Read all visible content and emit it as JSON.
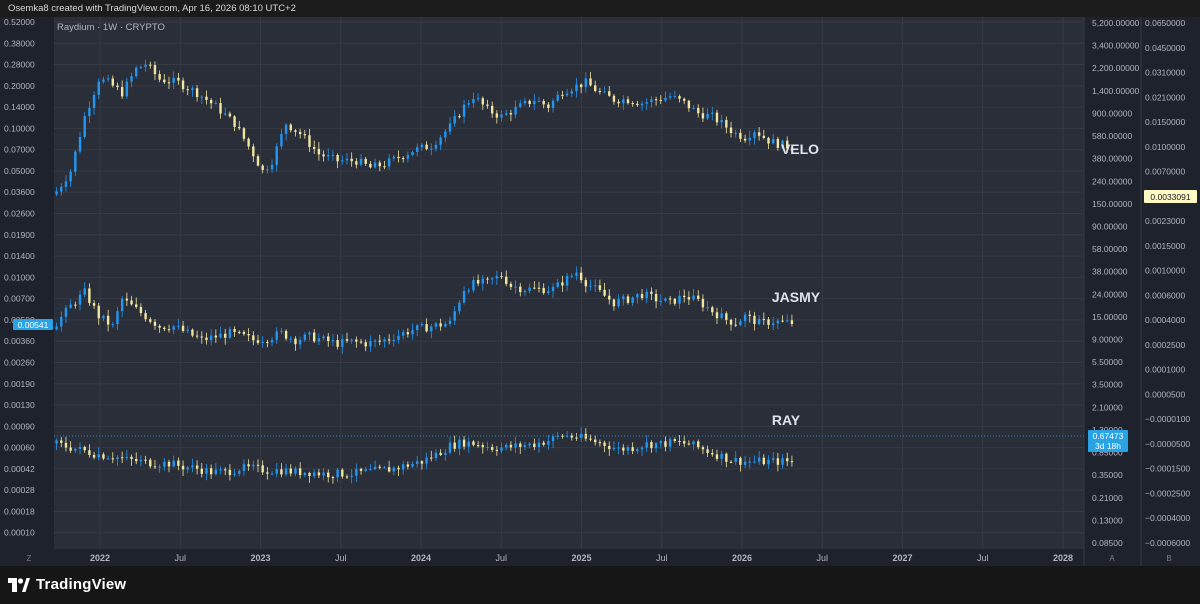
{
  "header": {
    "attribution": "Osemka8 created with TradingView.com, Apr 16, 2026 08:10 UTC+2"
  },
  "legend": {
    "title": "Raydium · 1W · CRYPTO"
  },
  "footer": {
    "brand": "TradingView",
    "corner_left": "Z",
    "corner_right_a": "A",
    "corner_right_b": "B"
  },
  "colors": {
    "background": "#2a2e38",
    "frame": "#161616",
    "grid": "#363a45",
    "up": "#2196f3",
    "down": "#f0e6a0",
    "price_line": "#29a3e6",
    "label_bg": "#29a3e6",
    "velo_label_bg": "#fff9c4",
    "text": "#b2b5be"
  },
  "chart_data": {
    "type": "candlestick",
    "timeframe": "1W",
    "x_ticks": [
      "2022",
      "Jul",
      "2023",
      "Jul",
      "2024",
      "Jul",
      "2025",
      "Jul",
      "2026",
      "Jul",
      "2027",
      "Jul",
      "2028"
    ],
    "left_axis": {
      "ticks": [
        "0.52000",
        "0.38000",
        "0.28000",
        "0.20000",
        "0.14000",
        "0.10000",
        "0.07000",
        "0.05000",
        "0.03600",
        "0.02600",
        "0.01900",
        "0.01400",
        "0.01000",
        "0.00700",
        "0.00500",
        "0.00360",
        "0.00260",
        "0.00190",
        "0.00130",
        "0.00090",
        "0.00060",
        "0.00042",
        "0.00028",
        "0.00018",
        "0.00010"
      ],
      "current_value": "0.00541"
    },
    "middle_axis": {
      "ticks": [
        "5,200.00000",
        "3,400.00000",
        "2,200.00000",
        "1,400.00000",
        "900.00000",
        "580.00000",
        "380.00000",
        "240.00000",
        "150.00000",
        "90.00000",
        "58.00000",
        "38.00000",
        "24.00000",
        "15.00000",
        "9.00000",
        "5.50000",
        "3.50000",
        "2.10000",
        "1.30000",
        "0.85000",
        "0.35000",
        "0.21000",
        "0.13000",
        "0.08500"
      ],
      "current_value": "0.67473",
      "countdown": "3d 18h"
    },
    "right_axis": {
      "ticks": [
        "0.0650000",
        "0.0450000",
        "0.0310000",
        "0.0210000",
        "0.0150000",
        "0.0100000",
        "0.0070000",
        "0.0050000",
        "0.0023000",
        "0.0015000",
        "0.0010000",
        "0.0006000",
        "0.0004000",
        "0.0002500",
        "0.0001000",
        "0.0000500",
        "−0.0000100",
        "−0.0000500",
        "−0.0001500",
        "−0.0002500",
        "−0.0004000",
        "−0.0006000"
      ],
      "current_value": "0.0033091"
    },
    "series": [
      {
        "name": "VELO",
        "anchors": [
          [
            0,
            0.18
          ],
          [
            3,
            0.3
          ],
          [
            6,
            0.62
          ],
          [
            9,
            0.84
          ],
          [
            11,
            0.82
          ],
          [
            14,
            0.76
          ],
          [
            17,
            0.9
          ],
          [
            19,
            0.93
          ],
          [
            22,
            0.84
          ],
          [
            26,
            0.82
          ],
          [
            30,
            0.76
          ],
          [
            34,
            0.68
          ],
          [
            38,
            0.58
          ],
          [
            42,
            0.4
          ],
          [
            44,
            0.3
          ],
          [
            46,
            0.36
          ],
          [
            49,
            0.58
          ],
          [
            52,
            0.52
          ],
          [
            56,
            0.4
          ],
          [
            60,
            0.36
          ],
          [
            64,
            0.36
          ],
          [
            67,
            0.32
          ],
          [
            70,
            0.34
          ],
          [
            73,
            0.38
          ],
          [
            76,
            0.42
          ],
          [
            80,
            0.45
          ],
          [
            84,
            0.56
          ],
          [
            87,
            0.68
          ],
          [
            89,
            0.74
          ],
          [
            92,
            0.66
          ],
          [
            95,
            0.62
          ],
          [
            99,
            0.68
          ],
          [
            102,
            0.72
          ],
          [
            105,
            0.68
          ],
          [
            108,
            0.77
          ],
          [
            111,
            0.8
          ],
          [
            113,
            0.82
          ],
          [
            116,
            0.76
          ],
          [
            119,
            0.72
          ],
          [
            122,
            0.72
          ],
          [
            125,
            0.7
          ],
          [
            128,
            0.72
          ],
          [
            131,
            0.74
          ],
          [
            134,
            0.7
          ],
          [
            137,
            0.64
          ],
          [
            140,
            0.62
          ],
          [
            143,
            0.56
          ],
          [
            145,
            0.52
          ],
          [
            147,
            0.5
          ],
          [
            149,
            0.54
          ],
          [
            152,
            0.48
          ],
          [
            154,
            0.46
          ],
          [
            157,
            0.44
          ]
        ]
      },
      {
        "name": "JASMY",
        "anchors": [
          [
            0,
            0.2
          ],
          [
            3,
            0.3
          ],
          [
            6,
            0.38
          ],
          [
            9,
            0.24
          ],
          [
            12,
            0.18
          ],
          [
            14,
            0.34
          ],
          [
            17,
            0.28
          ],
          [
            20,
            0.22
          ],
          [
            22,
            0.18
          ],
          [
            25,
            0.18
          ],
          [
            28,
            0.14
          ],
          [
            31,
            0.1
          ],
          [
            34,
            0.12
          ],
          [
            37,
            0.14
          ],
          [
            40,
            0.12
          ],
          [
            42,
            0.1
          ],
          [
            45,
            0.11
          ],
          [
            48,
            0.14
          ],
          [
            51,
            0.1
          ],
          [
            54,
            0.12
          ],
          [
            57,
            0.1
          ],
          [
            60,
            0.08
          ],
          [
            63,
            0.09
          ],
          [
            66,
            0.08
          ],
          [
            69,
            0.09
          ],
          [
            72,
            0.12
          ],
          [
            76,
            0.16
          ],
          [
            80,
            0.18
          ],
          [
            84,
            0.2
          ],
          [
            87,
            0.4
          ],
          [
            89,
            0.43
          ],
          [
            92,
            0.44
          ],
          [
            95,
            0.48
          ],
          [
            97,
            0.42
          ],
          [
            100,
            0.4
          ],
          [
            103,
            0.4
          ],
          [
            106,
            0.4
          ],
          [
            109,
            0.46
          ],
          [
            111,
            0.5
          ],
          [
            113,
            0.44
          ],
          [
            116,
            0.38
          ],
          [
            119,
            0.32
          ],
          [
            122,
            0.34
          ],
          [
            125,
            0.37
          ],
          [
            128,
            0.34
          ],
          [
            131,
            0.32
          ],
          [
            134,
            0.36
          ],
          [
            137,
            0.33
          ],
          [
            140,
            0.27
          ],
          [
            143,
            0.22
          ],
          [
            145,
            0.2
          ],
          [
            147,
            0.24
          ],
          [
            150,
            0.2
          ],
          [
            153,
            0.21
          ],
          [
            157,
            0.2
          ]
        ]
      },
      {
        "name": "RAY",
        "anchors": [
          [
            0,
            0.2
          ],
          [
            3,
            0.18
          ],
          [
            6,
            0.16
          ],
          [
            9,
            0.14
          ],
          [
            12,
            0.13
          ],
          [
            15,
            0.11
          ],
          [
            18,
            0.1
          ],
          [
            21,
            0.09
          ],
          [
            24,
            0.09
          ],
          [
            27,
            0.07
          ],
          [
            30,
            0.06
          ],
          [
            33,
            0.04
          ],
          [
            36,
            0.04
          ],
          [
            39,
            0.06
          ],
          [
            42,
            0.06
          ],
          [
            45,
            0.05
          ],
          [
            48,
            0.05
          ],
          [
            51,
            0.04
          ],
          [
            54,
            0.04
          ],
          [
            57,
            0.03
          ],
          [
            60,
            0.03
          ],
          [
            63,
            0.03
          ],
          [
            66,
            0.04
          ],
          [
            69,
            0.05
          ],
          [
            72,
            0.06
          ],
          [
            75,
            0.08
          ],
          [
            78,
            0.1
          ],
          [
            81,
            0.14
          ],
          [
            84,
            0.19
          ],
          [
            87,
            0.21
          ],
          [
            90,
            0.2
          ],
          [
            93,
            0.18
          ],
          [
            96,
            0.18
          ],
          [
            99,
            0.19
          ],
          [
            102,
            0.2
          ],
          [
            105,
            0.22
          ],
          [
            108,
            0.25
          ],
          [
            111,
            0.24
          ],
          [
            114,
            0.22
          ],
          [
            117,
            0.2
          ],
          [
            120,
            0.17
          ],
          [
            123,
            0.18
          ],
          [
            126,
            0.2
          ],
          [
            129,
            0.2
          ],
          [
            132,
            0.21
          ],
          [
            135,
            0.2
          ],
          [
            138,
            0.17
          ],
          [
            141,
            0.14
          ],
          [
            144,
            0.11
          ],
          [
            147,
            0.1
          ],
          [
            150,
            0.1
          ],
          [
            153,
            0.1
          ],
          [
            157,
            0.1
          ]
        ]
      }
    ],
    "annotations": [
      "VELO",
      "JASMY",
      "RAY"
    ],
    "scale": "log",
    "grid": true
  }
}
